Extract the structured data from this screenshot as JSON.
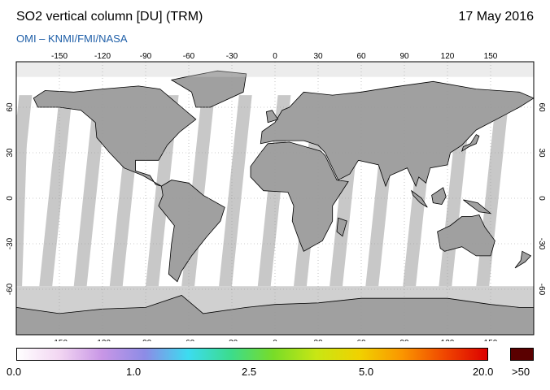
{
  "header": {
    "title": "SO2 vertical column [DU] (TRM)",
    "date": "17 May 2016",
    "credit": "OMI  –  KNMI/FMI/NASA"
  },
  "map": {
    "projection": "equirectangular",
    "lon_ticks": [
      "-150",
      "-120",
      "-90",
      "-60",
      "-30",
      "0",
      "30",
      "60",
      "90",
      "120",
      "150"
    ],
    "lon_tick_values": [
      -150,
      -120,
      -90,
      -60,
      -30,
      0,
      30,
      60,
      90,
      120,
      150
    ],
    "lat_ticks": [
      "60",
      "30",
      "0",
      "-30",
      "-60"
    ],
    "lat_tick_values": [
      60,
      30,
      0,
      -30,
      -60
    ],
    "lon_range": [
      -180,
      180
    ],
    "lat_range": [
      -90,
      90
    ],
    "colors": {
      "no_data_gray": "#c8c8c8",
      "land_dark_gray": "#a0a0a0",
      "grid": "#9a9a9a",
      "coast": "#000000"
    }
  },
  "colorbar": {
    "labels": [
      "0.0",
      "1.0",
      "2.5",
      "5.0",
      "20.0",
      ">50"
    ],
    "label_values": [
      0.0,
      1.0,
      2.5,
      5.0,
      20.0
    ],
    "over_label": ">50",
    "over_color": "#5a0000",
    "stops": [
      "#ffffff",
      "#f2d6f2",
      "#c896e6",
      "#8c8ce6",
      "#3cdcf0",
      "#3cdc8c",
      "#78dc28",
      "#c8e614",
      "#f0d200",
      "#fa9600",
      "#f04600",
      "#dc0000"
    ]
  }
}
